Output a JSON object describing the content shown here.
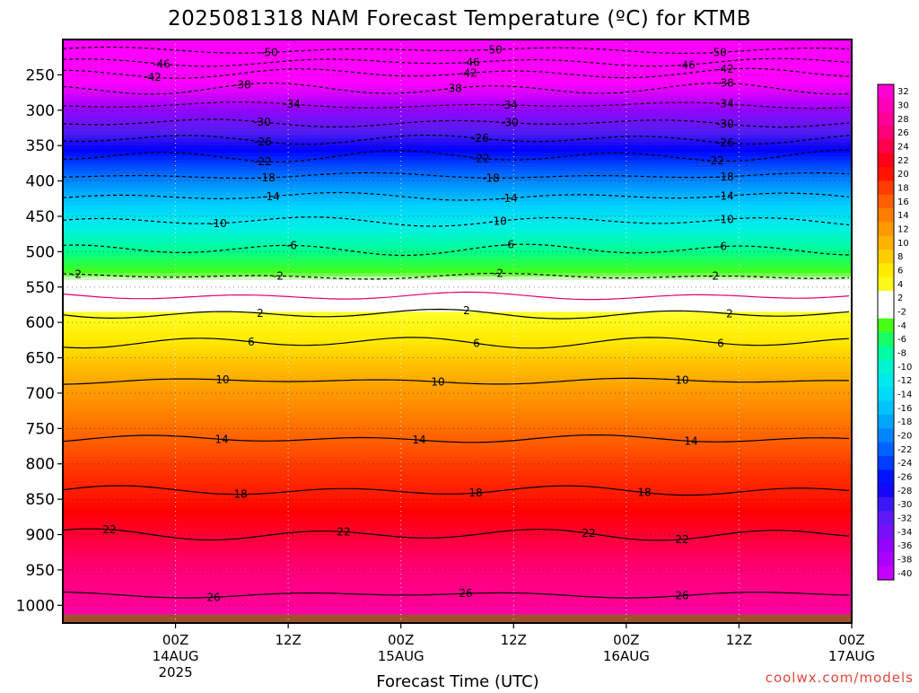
{
  "chart_data": {
    "type": "heatmap",
    "title": "2025081318 NAM Forecast Temperature (ºC) for KTMB",
    "xlabel": "Forecast Time (UTC)",
    "ylabel": "",
    "credit": "coolwx.com/models",
    "x_ticks": [
      {
        "label": "00Z",
        "sub": "14AUG",
        "sub2": "2025"
      },
      {
        "label": "12Z",
        "sub": "",
        "sub2": ""
      },
      {
        "label": "00Z",
        "sub": "15AUG",
        "sub2": ""
      },
      {
        "label": "12Z",
        "sub": "",
        "sub2": ""
      },
      {
        "label": "00Z",
        "sub": "16AUG",
        "sub2": ""
      },
      {
        "label": "12Z",
        "sub": "",
        "sub2": ""
      },
      {
        "label": "00Z",
        "sub": "17AUG",
        "sub2": ""
      }
    ],
    "x_range_hours": [
      -12,
      72
    ],
    "y_ticks": [
      250,
      300,
      350,
      400,
      450,
      500,
      550,
      600,
      650,
      700,
      750,
      800,
      850,
      900,
      950,
      1000
    ],
    "y_range_hpa": [
      200,
      1025
    ],
    "surface_pressure_hpa": 1013,
    "colorbar": {
      "levels": [
        -40,
        -38,
        -36,
        -34,
        -32,
        -30,
        -28,
        -26,
        -24,
        -22,
        -20,
        -18,
        -16,
        -14,
        -12,
        -10,
        -8,
        -6,
        -4,
        -2,
        2,
        4,
        6,
        8,
        10,
        12,
        14,
        16,
        18,
        20,
        22,
        24,
        26,
        28,
        30,
        32
      ],
      "labels": [
        "32",
        "30",
        "28",
        "26",
        "24",
        "22",
        "20",
        "18",
        "16",
        "14",
        "12",
        "10",
        "8",
        "6",
        "4",
        "2",
        "-2",
        "-4",
        "-6",
        "-8",
        "-10",
        "-12",
        "-14",
        "-16",
        "-18",
        "-20",
        "-22",
        "-24",
        "-26",
        "-28",
        "-30",
        "-32",
        "-34",
        "-36",
        "-38",
        "-40"
      ]
    },
    "temperature_profile": [
      {
        "pressure": 200,
        "temp": -55
      },
      {
        "pressure": 235,
        "temp": -49
      },
      {
        "pressure": 250,
        "temp": -46
      },
      {
        "pressure": 275,
        "temp": -41
      },
      {
        "pressure": 300,
        "temp": -35
      },
      {
        "pressure": 325,
        "temp": -31
      },
      {
        "pressure": 350,
        "temp": -27
      },
      {
        "pressure": 400,
        "temp": -19
      },
      {
        "pressure": 450,
        "temp": -12
      },
      {
        "pressure": 500,
        "temp": -6
      },
      {
        "pressure": 550,
        "temp": -1
      },
      {
        "pressure": 600,
        "temp": 3
      },
      {
        "pressure": 650,
        "temp": 7
      },
      {
        "pressure": 700,
        "temp": 11
      },
      {
        "pressure": 750,
        "temp": 14
      },
      {
        "pressure": 800,
        "temp": 17
      },
      {
        "pressure": 850,
        "temp": 19
      },
      {
        "pressure": 900,
        "temp": 22
      },
      {
        "pressure": 950,
        "temp": 25
      },
      {
        "pressure": 1000,
        "temp": 27
      },
      {
        "pressure": 1025,
        "temp": 29
      }
    ],
    "contours": [
      {
        "value": "-50",
        "pressure": 215
      },
      {
        "value": "-46",
        "pressure": 232
      },
      {
        "value": "-42",
        "pressure": 248
      },
      {
        "value": "-38",
        "pressure": 270
      },
      {
        "value": "-34",
        "pressure": 293
      },
      {
        "value": "-30",
        "pressure": 318
      },
      {
        "value": "-26",
        "pressure": 341
      },
      {
        "value": "-22",
        "pressure": 365
      },
      {
        "value": "-18",
        "pressure": 393
      },
      {
        "value": "-14",
        "pressure": 422
      },
      {
        "value": "-10",
        "pressure": 457
      },
      {
        "value": "-6",
        "pressure": 497
      },
      {
        "value": "-2",
        "pressure": 535
      },
      {
        "value": "",
        "pressure": 563
      },
      {
        "value": "2",
        "pressure": 588
      },
      {
        "value": "6",
        "pressure": 628
      },
      {
        "value": "10",
        "pressure": 683
      },
      {
        "value": "14",
        "pressure": 765
      },
      {
        "value": "18",
        "pressure": 838
      },
      {
        "value": "22",
        "pressure": 900
      },
      {
        "value": "26",
        "pressure": 985
      }
    ]
  }
}
